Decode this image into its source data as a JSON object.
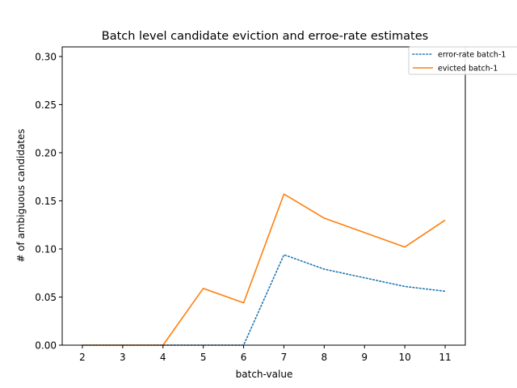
{
  "chart_data": {
    "type": "line",
    "title": "Batch level candidate eviction and erroe-rate estimates",
    "xlabel": "batch-value",
    "ylabel": "# of ambiguous candidates",
    "x": [
      2,
      3,
      4,
      5,
      6,
      7,
      8,
      9,
      10,
      11
    ],
    "xlim": [
      1.5,
      11.5
    ],
    "ylim": [
      0,
      0.31
    ],
    "xticks": [
      "2",
      "3",
      "4",
      "5",
      "6",
      "7",
      "8",
      "9",
      "10",
      "11"
    ],
    "yticks": [
      "0.00",
      "0.05",
      "0.10",
      "0.15",
      "0.20",
      "0.25",
      "0.30"
    ],
    "grid": false,
    "legend_position": "top-right",
    "series": [
      {
        "name": "error-rate batch-1",
        "style": "dotted",
        "color": "#1f77b4",
        "values": [
          0.0,
          0.0,
          0.0,
          0.0,
          0.0,
          0.094,
          0.079,
          0.07,
          0.061,
          0.056
        ]
      },
      {
        "name": "evicted batch-1",
        "style": "solid",
        "color": "#ff7f0e",
        "values": [
          0.0,
          0.0,
          0.0,
          0.059,
          0.044,
          0.157,
          0.132,
          0.117,
          0.102,
          0.13
        ]
      }
    ]
  }
}
